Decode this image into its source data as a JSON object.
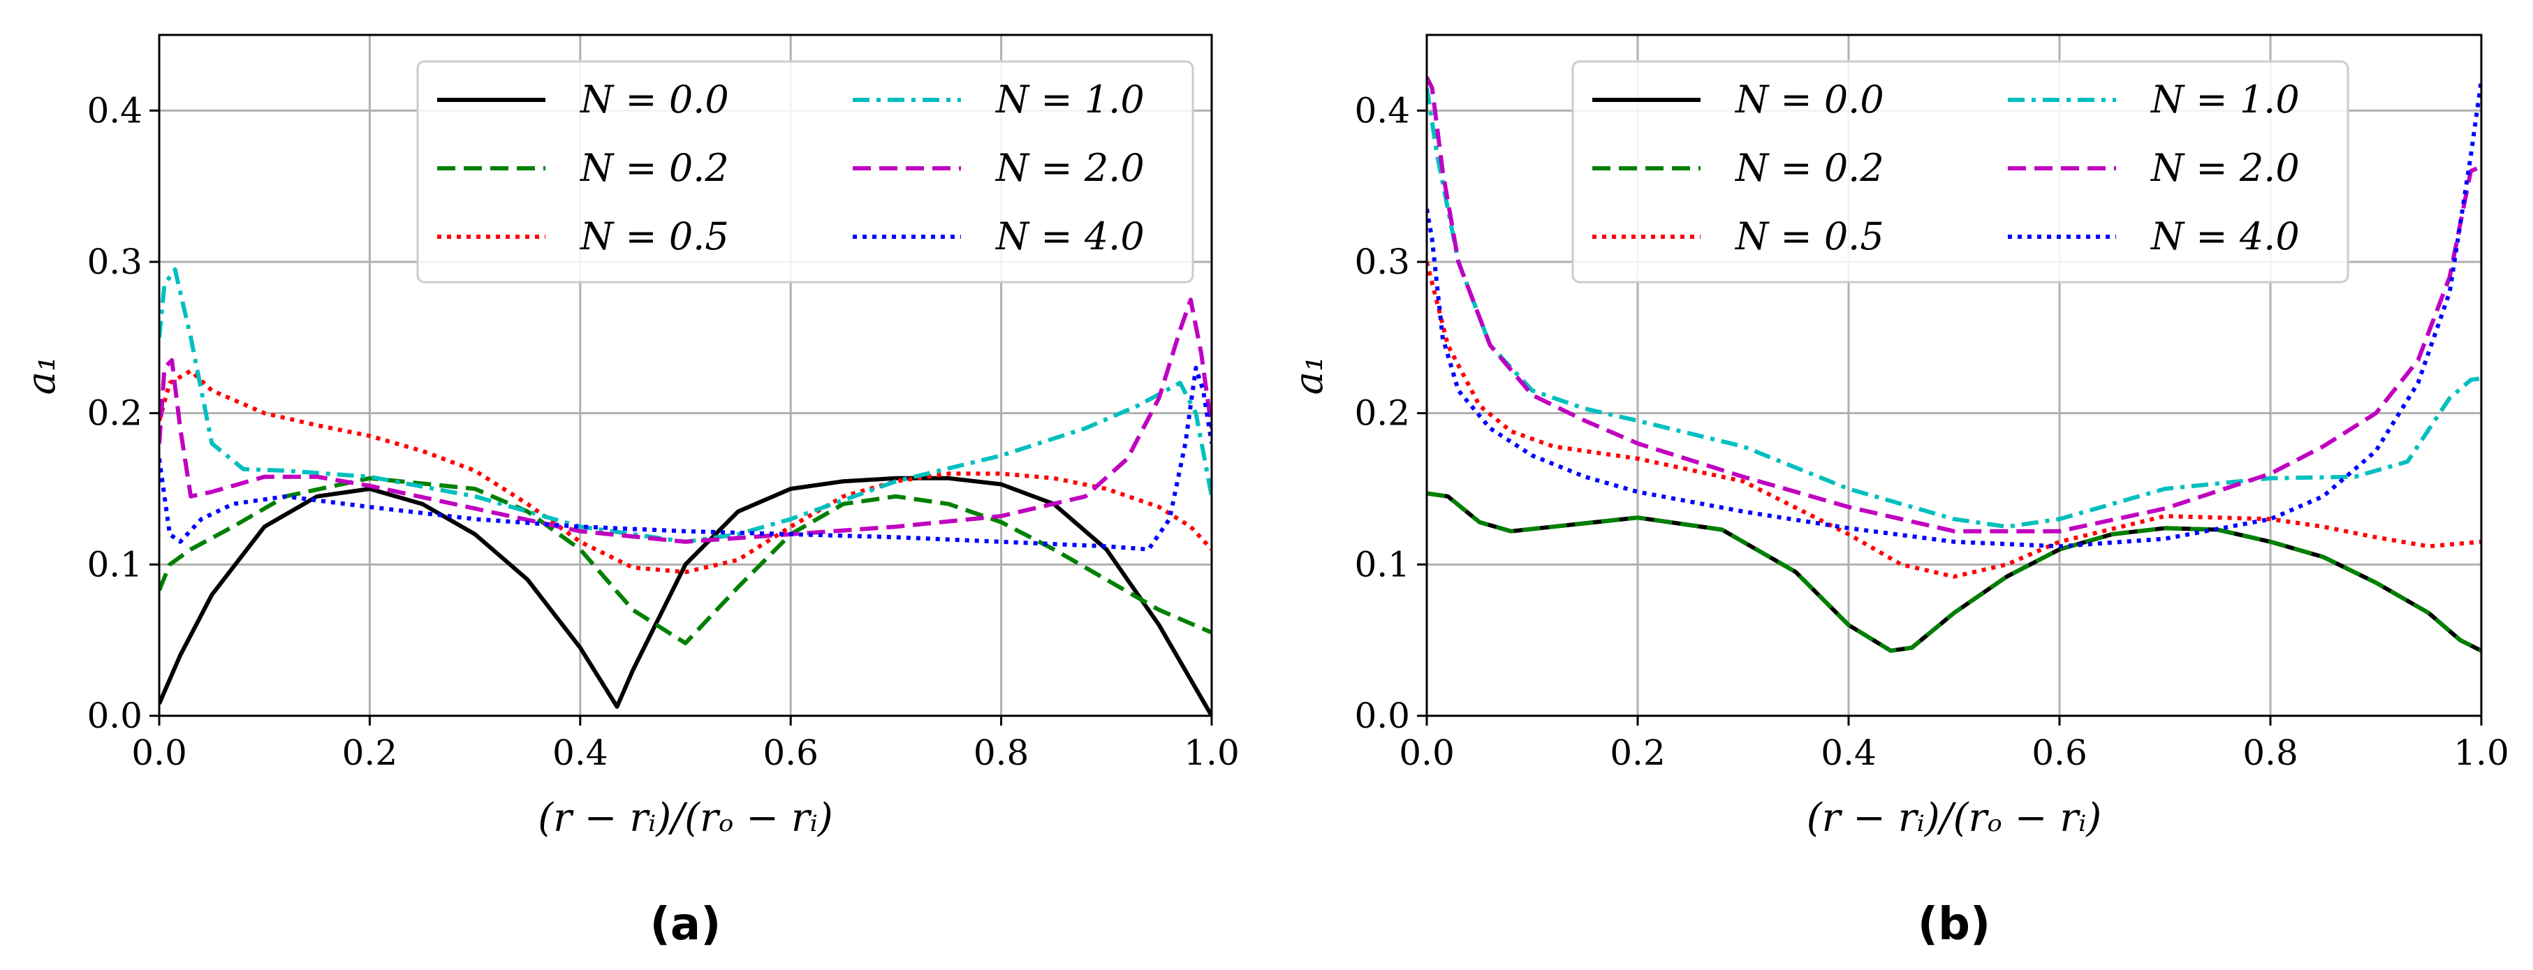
{
  "chart_data": [
    {
      "type": "line",
      "panel_label": "(a)",
      "xlabel": "(r − rᵢ)/(rₒ − rᵢ)",
      "ylabel": "a₁",
      "xlim": [
        0.0,
        1.0
      ],
      "ylim": [
        0.0,
        0.45
      ],
      "xticks": [
        "0.0",
        "0.2",
        "0.4",
        "0.6",
        "0.8",
        "1.0"
      ],
      "yticks": [
        "0.0",
        "0.1",
        "0.2",
        "0.3",
        "0.4"
      ],
      "grid": true,
      "legend_position": "top-right",
      "series": [
        {
          "name": "N = 0.0",
          "color": "#000000",
          "style": "solid",
          "x": [
            0,
            0.02,
            0.05,
            0.1,
            0.15,
            0.2,
            0.25,
            0.3,
            0.35,
            0.4,
            0.435,
            0.45,
            0.5,
            0.55,
            0.6,
            0.65,
            0.7,
            0.75,
            0.8,
            0.85,
            0.9,
            0.95,
            1.0
          ],
          "y": [
            0.008,
            0.04,
            0.08,
            0.125,
            0.145,
            0.15,
            0.14,
            0.12,
            0.09,
            0.045,
            0.006,
            0.03,
            0.1,
            0.135,
            0.15,
            0.155,
            0.157,
            0.157,
            0.153,
            0.14,
            0.11,
            0.06,
            0.0
          ]
        },
        {
          "name": "N = 0.2",
          "color": "#008000",
          "style": "dashed",
          "x": [
            0,
            0.01,
            0.03,
            0.07,
            0.12,
            0.2,
            0.3,
            0.35,
            0.4,
            0.45,
            0.5,
            0.55,
            0.6,
            0.65,
            0.7,
            0.75,
            0.8,
            0.85,
            0.9,
            0.95,
            1.0
          ],
          "y": [
            0.083,
            0.1,
            0.11,
            0.125,
            0.145,
            0.157,
            0.15,
            0.135,
            0.11,
            0.07,
            0.048,
            0.085,
            0.12,
            0.14,
            0.145,
            0.14,
            0.128,
            0.11,
            0.09,
            0.07,
            0.055
          ]
        },
        {
          "name": "N = 0.5",
          "color": "#ff0000",
          "style": "dotted",
          "x": [
            0,
            0.01,
            0.03,
            0.05,
            0.1,
            0.15,
            0.2,
            0.25,
            0.3,
            0.35,
            0.4,
            0.45,
            0.5,
            0.55,
            0.6,
            0.65,
            0.7,
            0.75,
            0.8,
            0.85,
            0.9,
            0.95,
            0.98,
            1.0
          ],
          "y": [
            0.195,
            0.22,
            0.228,
            0.215,
            0.2,
            0.192,
            0.185,
            0.175,
            0.162,
            0.14,
            0.115,
            0.098,
            0.095,
            0.103,
            0.125,
            0.145,
            0.155,
            0.16,
            0.16,
            0.157,
            0.15,
            0.138,
            0.125,
            0.11
          ]
        },
        {
          "name": "N = 1.0",
          "color": "#00bfbf",
          "style": "dashdot",
          "x": [
            0,
            0.005,
            0.015,
            0.03,
            0.05,
            0.08,
            0.12,
            0.2,
            0.3,
            0.4,
            0.5,
            0.55,
            0.6,
            0.7,
            0.8,
            0.88,
            0.93,
            0.97,
            0.985,
            1.0
          ],
          "y": [
            0.25,
            0.285,
            0.295,
            0.25,
            0.18,
            0.163,
            0.162,
            0.158,
            0.145,
            0.125,
            0.115,
            0.12,
            0.13,
            0.155,
            0.172,
            0.19,
            0.205,
            0.22,
            0.2,
            0.145
          ]
        },
        {
          "name": "N = 2.0",
          "color": "#c000c0",
          "style": "dashed",
          "x": [
            0,
            0.005,
            0.012,
            0.02,
            0.03,
            0.05,
            0.1,
            0.15,
            0.2,
            0.3,
            0.4,
            0.5,
            0.6,
            0.7,
            0.8,
            0.88,
            0.92,
            0.95,
            0.97,
            0.98,
            0.99,
            1.0
          ],
          "y": [
            0.18,
            0.23,
            0.235,
            0.19,
            0.145,
            0.148,
            0.158,
            0.158,
            0.152,
            0.137,
            0.122,
            0.115,
            0.12,
            0.125,
            0.132,
            0.145,
            0.17,
            0.21,
            0.255,
            0.275,
            0.24,
            0.19
          ]
        },
        {
          "name": "N = 4.0",
          "color": "#0000ff",
          "style": "dotted",
          "x": [
            0,
            0.005,
            0.01,
            0.02,
            0.04,
            0.07,
            0.12,
            0.2,
            0.3,
            0.4,
            0.5,
            0.6,
            0.7,
            0.8,
            0.9,
            0.94,
            0.96,
            0.975,
            0.985,
            0.992,
            1.0
          ],
          "y": [
            0.17,
            0.145,
            0.12,
            0.115,
            0.13,
            0.14,
            0.145,
            0.138,
            0.13,
            0.125,
            0.122,
            0.12,
            0.118,
            0.115,
            0.112,
            0.11,
            0.13,
            0.18,
            0.23,
            0.215,
            0.18
          ]
        }
      ]
    },
    {
      "type": "line",
      "panel_label": "(b)",
      "xlabel": "(r − rᵢ)/(rₒ − rᵢ)",
      "ylabel": "a₁",
      "xlim": [
        0.0,
        1.0
      ],
      "ylim": [
        0.0,
        0.45
      ],
      "xticks": [
        "0.0",
        "0.2",
        "0.4",
        "0.6",
        "0.8",
        "1.0"
      ],
      "yticks": [
        "0.0",
        "0.1",
        "0.2",
        "0.3",
        "0.4"
      ],
      "grid": true,
      "legend_position": "top-right",
      "series": [
        {
          "name": "N = 0.0",
          "color": "#000000",
          "style": "solid",
          "x": [
            0,
            0.02,
            0.05,
            0.08,
            0.12,
            0.2,
            0.28,
            0.35,
            0.4,
            0.44,
            0.46,
            0.5,
            0.55,
            0.6,
            0.65,
            0.7,
            0.75,
            0.8,
            0.85,
            0.9,
            0.95,
            0.98,
            1.0
          ],
          "y": [
            0.147,
            0.145,
            0.128,
            0.122,
            0.125,
            0.131,
            0.123,
            0.095,
            0.06,
            0.043,
            0.045,
            0.068,
            0.092,
            0.11,
            0.12,
            0.124,
            0.123,
            0.115,
            0.105,
            0.088,
            0.068,
            0.05,
            0.043
          ]
        },
        {
          "name": "N = 0.2",
          "color": "#008000",
          "style": "dashed",
          "x": [
            0,
            0.02,
            0.05,
            0.08,
            0.12,
            0.2,
            0.28,
            0.35,
            0.4,
            0.44,
            0.46,
            0.5,
            0.55,
            0.6,
            0.65,
            0.7,
            0.75,
            0.8,
            0.85,
            0.9,
            0.95,
            0.98,
            1.0
          ],
          "y": [
            0.147,
            0.145,
            0.128,
            0.122,
            0.125,
            0.131,
            0.123,
            0.095,
            0.06,
            0.043,
            0.045,
            0.068,
            0.092,
            0.11,
            0.12,
            0.124,
            0.123,
            0.115,
            0.105,
            0.088,
            0.068,
            0.05,
            0.043
          ]
        },
        {
          "name": "N = 0.5",
          "color": "#ff0000",
          "style": "dotted",
          "x": [
            0,
            0.02,
            0.05,
            0.08,
            0.12,
            0.2,
            0.3,
            0.4,
            0.45,
            0.5,
            0.55,
            0.6,
            0.7,
            0.8,
            0.85,
            0.9,
            0.95,
            1.0
          ],
          "y": [
            0.3,
            0.245,
            0.205,
            0.188,
            0.178,
            0.17,
            0.155,
            0.12,
            0.1,
            0.092,
            0.1,
            0.115,
            0.132,
            0.13,
            0.125,
            0.118,
            0.112,
            0.115
          ]
        },
        {
          "name": "N = 1.0",
          "color": "#00bfbf",
          "style": "dashdot",
          "x": [
            0,
            0.01,
            0.03,
            0.06,
            0.1,
            0.15,
            0.2,
            0.3,
            0.4,
            0.5,
            0.55,
            0.6,
            0.7,
            0.8,
            0.88,
            0.93,
            0.97,
            0.99,
            1.0
          ],
          "y": [
            0.415,
            0.37,
            0.3,
            0.245,
            0.215,
            0.203,
            0.195,
            0.178,
            0.15,
            0.13,
            0.125,
            0.13,
            0.15,
            0.157,
            0.158,
            0.168,
            0.21,
            0.222,
            0.223
          ]
        },
        {
          "name": "N = 2.0",
          "color": "#c000c0",
          "style": "dashed",
          "x": [
            0,
            0.005,
            0.015,
            0.03,
            0.06,
            0.1,
            0.15,
            0.2,
            0.3,
            0.4,
            0.5,
            0.6,
            0.7,
            0.8,
            0.85,
            0.9,
            0.94,
            0.97,
            0.99,
            1.0
          ],
          "y": [
            0.422,
            0.415,
            0.36,
            0.3,
            0.245,
            0.212,
            0.195,
            0.18,
            0.158,
            0.138,
            0.122,
            0.122,
            0.137,
            0.16,
            0.178,
            0.2,
            0.235,
            0.29,
            0.36,
            0.363
          ]
        },
        {
          "name": "N = 4.0",
          "color": "#0000ff",
          "style": "dotted",
          "x": [
            0,
            0.005,
            0.015,
            0.03,
            0.06,
            0.1,
            0.15,
            0.2,
            0.3,
            0.4,
            0.5,
            0.6,
            0.7,
            0.8,
            0.85,
            0.9,
            0.94,
            0.97,
            0.99,
            1.0
          ],
          "y": [
            0.335,
            0.315,
            0.25,
            0.215,
            0.19,
            0.172,
            0.158,
            0.148,
            0.135,
            0.124,
            0.115,
            0.112,
            0.117,
            0.13,
            0.145,
            0.175,
            0.22,
            0.28,
            0.37,
            0.42
          ]
        }
      ]
    }
  ]
}
